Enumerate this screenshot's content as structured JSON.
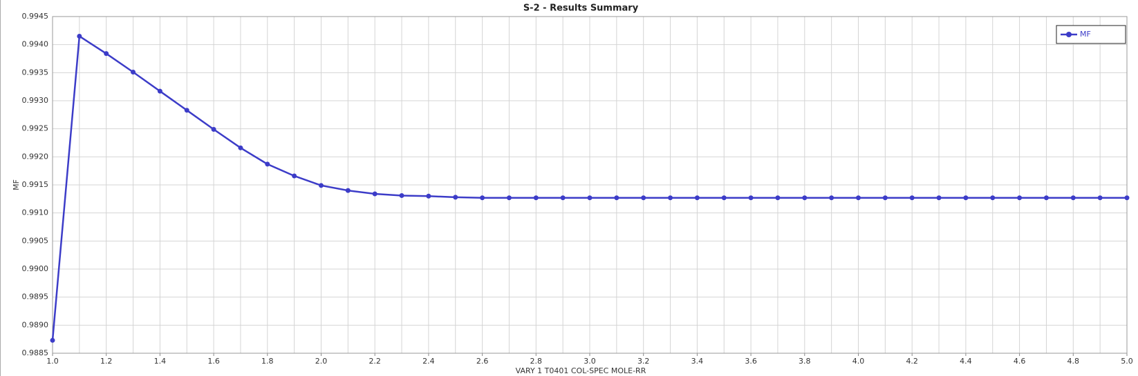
{
  "chart_data": {
    "type": "line",
    "title": "S-2 - Results Summary",
    "xlabel": "VARY   1 T0401    COL-SPEC MOLE-RR",
    "ylabel": "MF",
    "x": [
      1,
      1.1,
      1.2,
      1.3,
      1.4,
      1.5,
      1.6,
      1.7,
      1.8,
      1.9,
      2,
      2.1,
      2.2,
      2.3,
      2.4,
      2.5,
      2.6,
      2.7,
      2.8,
      2.9,
      3,
      3.1,
      3.2,
      3.3,
      3.4,
      3.5,
      3.6,
      3.7,
      3.8,
      3.9,
      4,
      4.1,
      4.2,
      4.3,
      4.4,
      4.5,
      4.6,
      4.7,
      4.8,
      4.9,
      5
    ],
    "series": [
      {
        "name": "MF",
        "color": "#3c3cc8",
        "values": [
          0.98873,
          0.99415,
          0.99384,
          0.99351,
          0.99317,
          0.99283,
          0.99249,
          0.99216,
          0.99187,
          0.99166,
          0.99149,
          0.9914,
          0.99134,
          0.99131,
          0.9913,
          0.99128,
          0.99127,
          0.99127,
          0.99127,
          0.99127,
          0.99127,
          0.99127,
          0.99127,
          0.99127,
          0.99127,
          0.99127,
          0.99127,
          0.99127,
          0.99127,
          0.99127,
          0.99127,
          0.99127,
          0.99127,
          0.99127,
          0.99127,
          0.99127,
          0.99127,
          0.99127,
          0.99127,
          0.99127,
          0.99127
        ]
      }
    ],
    "xlim": [
      1,
      5
    ],
    "ylim": [
      0.9885,
      0.9945
    ],
    "xticks": [
      {
        "value": 1,
        "label": "1.0"
      },
      {
        "value": 1.2,
        "label": "1.2"
      },
      {
        "value": 1.4,
        "label": "1.4"
      },
      {
        "value": 1.6,
        "label": "1.6"
      },
      {
        "value": 1.8,
        "label": "1.8"
      },
      {
        "value": 2,
        "label": "2.0"
      },
      {
        "value": 2.2,
        "label": "2.2"
      },
      {
        "value": 2.4,
        "label": "2.4"
      },
      {
        "value": 2.6,
        "label": "2.6"
      },
      {
        "value": 2.8,
        "label": "2.8"
      },
      {
        "value": 3,
        "label": "3.0"
      },
      {
        "value": 3.2,
        "label": "3.2"
      },
      {
        "value": 3.4,
        "label": "3.4"
      },
      {
        "value": 3.6,
        "label": "3.6"
      },
      {
        "value": 3.8,
        "label": "3.8"
      },
      {
        "value": 4,
        "label": "4.0"
      },
      {
        "value": 4.2,
        "label": "4.2"
      },
      {
        "value": 4.4,
        "label": "4.4"
      },
      {
        "value": 4.6,
        "label": "4.6"
      },
      {
        "value": 4.8,
        "label": "4.8"
      },
      {
        "value": 5,
        "label": "5.0"
      }
    ],
    "yticks": [
      0.9945,
      {
        "value": 0.994,
        "label": "0.9940"
      },
      0.9935,
      {
        "value": 0.993,
        "label": "0.9930"
      },
      0.9925,
      {
        "value": 0.992,
        "label": "0.9920"
      },
      0.9915,
      {
        "value": 0.991,
        "label": "0.9910"
      },
      0.9905,
      {
        "value": 0.99,
        "label": "0.9900"
      },
      0.9895,
      {
        "value": 0.989,
        "label": "0.9890"
      },
      0.9885
    ],
    "grid": true,
    "legend": "upper right"
  }
}
